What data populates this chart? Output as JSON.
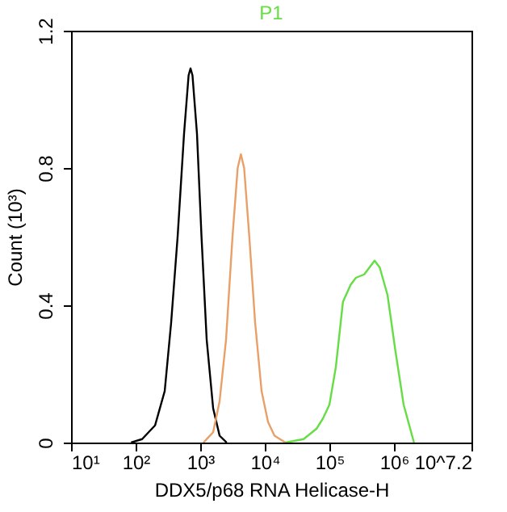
{
  "chart_data": {
    "type": "line",
    "xlabel": "DDX5/p68 RNA Helicase-H",
    "ylabel": "Count (10³)",
    "log": "x",
    "grid": false,
    "marker": "none",
    "line_style": "solid",
    "xlim": [
      10,
      15848932
    ],
    "ylim": [
      0,
      1.2
    ],
    "xticks": [
      {
        "value": 10,
        "label": "10¹"
      },
      {
        "value": 100,
        "label": "10²"
      },
      {
        "value": 1000,
        "label": "10³"
      },
      {
        "value": 10000,
        "label": "10⁴"
      },
      {
        "value": 100000,
        "label": "10⁵"
      },
      {
        "value": 1000000,
        "label": "10⁶"
      },
      {
        "value": 15848932,
        "label": "10^7.2"
      }
    ],
    "yticks": [
      0,
      0.4,
      0.8,
      1.2
    ],
    "series": [
      {
        "color": "#000000",
        "x": [
          85,
          126,
          200,
          282,
          355,
          447,
          562,
          661,
          708,
          759,
          891,
          1047,
          1259,
          1585,
          1995,
          2570
        ],
        "values": [
          0,
          0.01,
          0.05,
          0.15,
          0.35,
          0.6,
          0.9,
          1.07,
          1.09,
          1.07,
          0.9,
          0.6,
          0.3,
          0.1,
          0.02,
          0
        ]
      },
      {
        "color": "#e8a068",
        "x": [
          1122,
          1585,
          1995,
          2512,
          3162,
          3802,
          4266,
          4786,
          5754,
          7079,
          8913,
          11220,
          14125,
          20893
        ],
        "values": [
          0,
          0.03,
          0.12,
          0.3,
          0.6,
          0.8,
          0.84,
          0.8,
          0.6,
          0.35,
          0.15,
          0.06,
          0.02,
          0
        ]
      },
      {
        "name": "P1",
        "color": "#66dd44",
        "x": [
          20893,
          39811,
          63096,
          79433,
          100000,
          125893,
          162181,
          213796,
          257040,
          346737,
          416869,
          501187,
          602560,
          794328,
          1047129,
          1412538,
          2041738
        ],
        "values": [
          0,
          0.01,
          0.04,
          0.07,
          0.11,
          0.22,
          0.41,
          0.46,
          0.48,
          0.49,
          0.51,
          0.53,
          0.51,
          0.43,
          0.27,
          0.11,
          0
        ]
      }
    ]
  }
}
